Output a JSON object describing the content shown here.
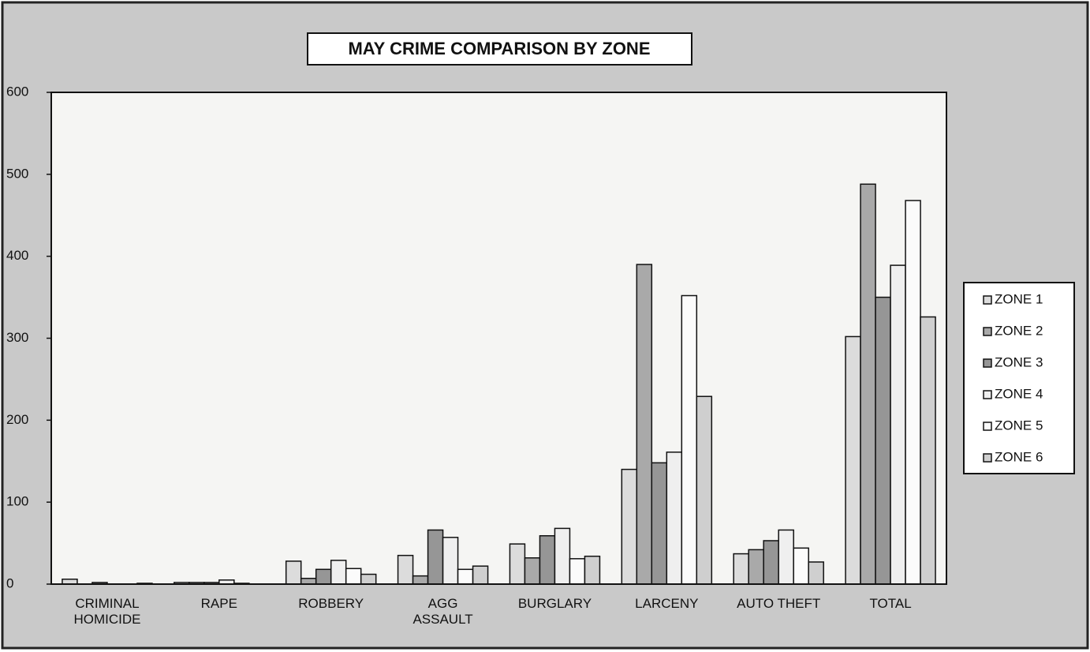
{
  "chart_data": {
    "type": "bar",
    "title": "MAY CRIME COMPARISON BY ZONE",
    "categories": [
      "CRIMINAL\nHOMICIDE",
      "RAPE",
      "ROBBERY",
      "AGG\nASSAULT",
      "BURGLARY",
      "LARCENY",
      "AUTO THEFT",
      "TOTAL"
    ],
    "series": [
      {
        "name": "ZONE 1",
        "color": "#dcdcdc",
        "values": [
          6,
          2,
          28,
          35,
          49,
          140,
          37,
          302
        ]
      },
      {
        "name": "ZONE 2",
        "color": "#a9a9a9",
        "values": [
          0,
          2,
          7,
          10,
          32,
          390,
          42,
          488
        ]
      },
      {
        "name": "ZONE 3",
        "color": "#969696",
        "values": [
          2,
          2,
          18,
          66,
          59,
          148,
          53,
          350
        ]
      },
      {
        "name": "ZONE 4",
        "color": "#efefef",
        "values": [
          0,
          5,
          29,
          57,
          68,
          161,
          66,
          389
        ]
      },
      {
        "name": "ZONE 5",
        "color": "#fbfbfb",
        "values": [
          0,
          1,
          19,
          18,
          31,
          352,
          44,
          468
        ]
      },
      {
        "name": "ZONE 6",
        "color": "#cfcfcf",
        "values": [
          1,
          0,
          12,
          22,
          34,
          229,
          27,
          326
        ]
      }
    ],
    "ylim": [
      0,
      600
    ],
    "yticks": [
      0,
      100,
      200,
      300,
      400,
      500,
      600
    ],
    "grid": false,
    "legend": "right"
  }
}
